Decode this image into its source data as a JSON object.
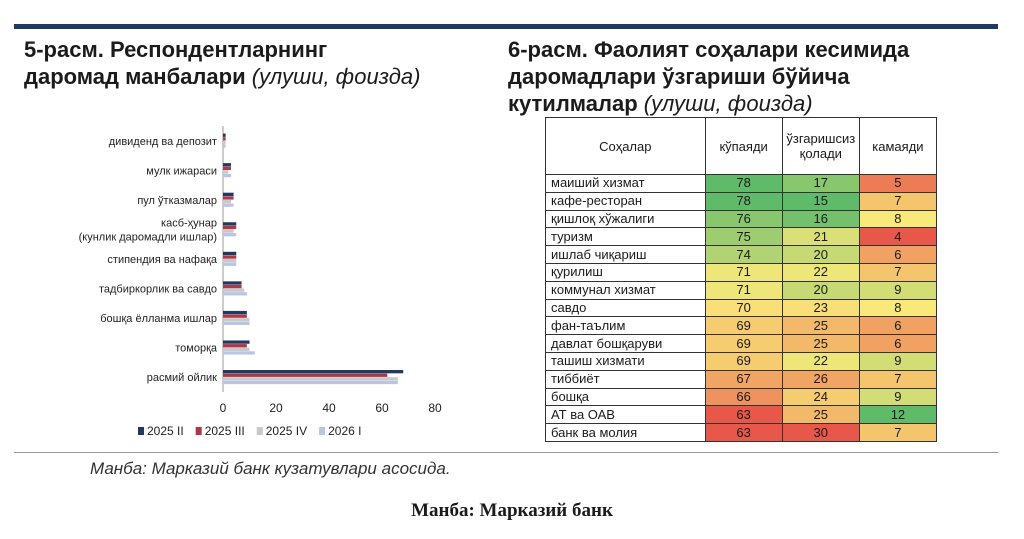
{
  "left_title": {
    "main": "5-расм. Респондентларнинг даромад манбалари",
    "unit": "(улуши, фоизда)",
    "line1": "5-расм. Респондентларнинг",
    "line2_main": "даромад манбалари "
  },
  "right_title": {
    "line1": "6-расм. Фаолият соҳалари кесимида",
    "line2": "даромадлари ўзгариши бўйича",
    "line3_main": "кутилмалар ",
    "unit": "(улуши, фоизда)"
  },
  "chart_data": [
    {
      "type": "bar",
      "orientation": "horizontal",
      "categories": [
        "дивиденд ва депозит",
        "мулк ижараси",
        "пул ўтказмалар",
        "касб-ҳунар (кунлик даромадли ишлар)",
        "стипендия ва нафақа",
        "тадбиркорлик ва савдо",
        "бошқа ёлланма ишлар",
        "томорқа",
        "расмий ойлик"
      ],
      "category_lines": [
        [
          "дивиденд ва депозит"
        ],
        [
          "мулк ижараси"
        ],
        [
          "пул ўтказмалар"
        ],
        [
          "касб-ҳунар",
          "(кунлик даромадли ишлар)"
        ],
        [
          "стипендия ва нафақа"
        ],
        [
          "тадбиркорлик ва савдо"
        ],
        [
          "бошқа ёлланма ишлар"
        ],
        [
          "томорқа"
        ],
        [
          "расмий ойлик"
        ]
      ],
      "series": [
        {
          "name": "2025 II",
          "color": "#1f3a5f",
          "values": [
            1,
            3,
            4,
            5,
            5,
            7,
            9,
            10,
            68
          ]
        },
        {
          "name": "2025 III",
          "color": "#b0374a",
          "values": [
            1,
            3,
            4,
            5,
            5,
            7,
            9,
            9,
            62
          ]
        },
        {
          "name": "2025 IV",
          "color": "#c9c9c9",
          "values": [
            1,
            2,
            3,
            4,
            5,
            8,
            10,
            10,
            66
          ]
        },
        {
          "name": "2026 I",
          "color": "#b9c6e2",
          "values": [
            1,
            3,
            4,
            5,
            5,
            9,
            10,
            12,
            66
          ]
        }
      ],
      "xlim": [
        0,
        80
      ],
      "xticks": [
        "0",
        "20",
        "40",
        "60",
        "80"
      ],
      "legend_position": "bottom"
    },
    {
      "type": "table",
      "columns": [
        "Соҳалар",
        "кўпаяди",
        "ўзгаришсиз қолади",
        "камаяди"
      ],
      "column_lines": {
        "no_change": [
          "ўзгаришсиз",
          "қолади"
        ]
      },
      "rows": [
        {
          "sector": "маиший хизмат",
          "increase": 78,
          "unchanged": 17,
          "decrease": 5
        },
        {
          "sector": "кафе-ресторан",
          "increase": 78,
          "unchanged": 15,
          "decrease": 7
        },
        {
          "sector": "қишлоқ хўжалиги",
          "increase": 76,
          "unchanged": 16,
          "decrease": 8
        },
        {
          "sector": "туризм",
          "increase": 75,
          "unchanged": 21,
          "decrease": 4
        },
        {
          "sector": "ишлаб чиқариш",
          "increase": 74,
          "unchanged": 20,
          "decrease": 6
        },
        {
          "sector": "қурилиш",
          "increase": 71,
          "unchanged": 22,
          "decrease": 7
        },
        {
          "sector": "коммунал хизмат",
          "increase": 71,
          "unchanged": 20,
          "decrease": 9
        },
        {
          "sector": "савдо",
          "increase": 70,
          "unchanged": 23,
          "decrease": 8
        },
        {
          "sector": "фан-таълим",
          "increase": 69,
          "unchanged": 25,
          "decrease": 6
        },
        {
          "sector": "давлат бошқаруви",
          "increase": 69,
          "unchanged": 25,
          "decrease": 6
        },
        {
          "sector": "ташиш хизмати",
          "increase": 69,
          "unchanged": 22,
          "decrease": 9
        },
        {
          "sector": "тиббиёт",
          "increase": 67,
          "unchanged": 26,
          "decrease": 7
        },
        {
          "sector": "бошқа",
          "increase": 66,
          "unchanged": 24,
          "decrease": 9
        },
        {
          "sector": "АТ ва ОАВ",
          "increase": 63,
          "unchanged": 25,
          "decrease": 12
        },
        {
          "sector": "банк ва молия",
          "increase": 63,
          "unchanged": 30,
          "decrease": 7
        }
      ],
      "color_scale": {
        "low": "#e8584a",
        "mid": "#f9e97a",
        "high": "#5fba6a"
      }
    }
  ],
  "source_note": "Манба: Марказий банк кузатувлари асосида.",
  "source_bold": "Манба: Марказий банк"
}
